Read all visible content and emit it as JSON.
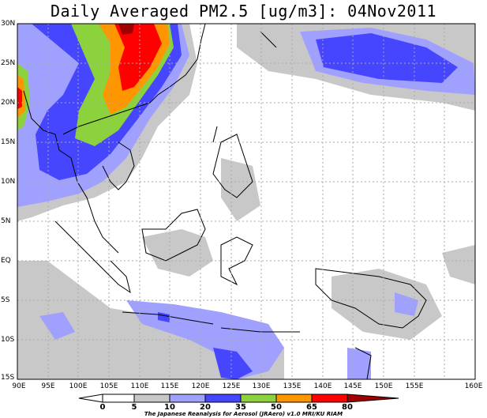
{
  "title": "Daily Averaged PM2.5 [ug/m3]: 04Nov2011",
  "lat_labels": [
    "30N",
    "25N",
    "20N",
    "15N",
    "10N",
    "5N",
    "EQ",
    "5S",
    "10S",
    "15S"
  ],
  "lon_labels": [
    "90E",
    "95E",
    "100E",
    "105E",
    "110E",
    "115E",
    "120E",
    "125E",
    "130E",
    "135E",
    "140E",
    "145E",
    "150E",
    "155E",
    "160E"
  ],
  "colorbar": {
    "ticks": [
      "0",
      "5",
      "10",
      "20",
      "35",
      "50",
      "65",
      "80"
    ],
    "colors": [
      "#ffffff",
      "#ffffff",
      "#c8c8c8",
      "#a0a0ff",
      "#4646ff",
      "#8cd23c",
      "#ff9600",
      "#ff0000",
      "#a00000"
    ]
  },
  "credit": "The Japanese Reanalysis for Aerosol (JRAero) v1.0 MRI/KU RIAM"
}
